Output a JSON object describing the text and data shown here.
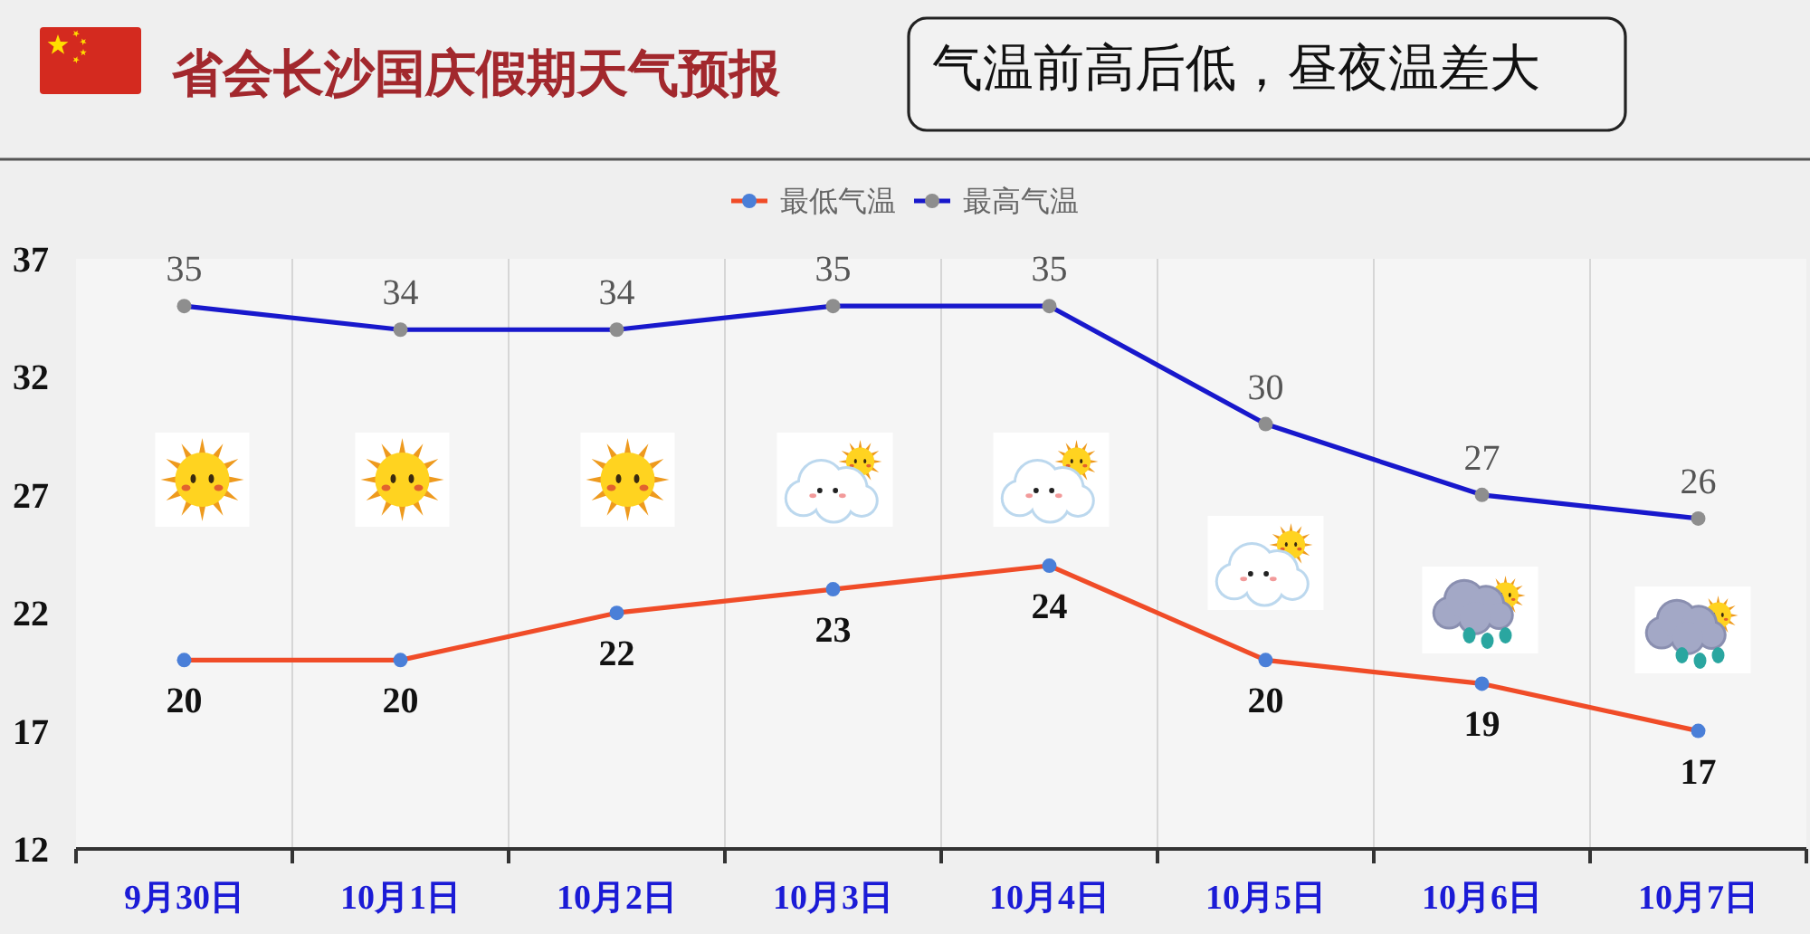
{
  "chart_data": {
    "type": "line",
    "title": "省会长沙国庆假期天气预报",
    "subtitle": "气温前高后低，昼夜温差大",
    "categories": [
      "9月30日",
      "10月1日",
      "10月2日",
      "10月3日",
      "10月4日",
      "10月5日",
      "10月6日",
      "10月7日"
    ],
    "series": [
      {
        "name": "最低气温",
        "color": "#f04c28",
        "colors": [
          "#4a7fd8",
          "#4a7fd8",
          "#4a7fd8",
          "#4a7fd8",
          "#4a7fd8",
          "#4a7fd8",
          "#4a7fd8",
          "#4a7fd8"
        ],
        "values": [
          20,
          20,
          22,
          23,
          24,
          20,
          19,
          17
        ]
      },
      {
        "name": "最高气温",
        "color": "#1818cc",
        "colors": [
          "#8e8e8e",
          "#8e8e8e",
          "#8e8e8e",
          "#8e8e8e",
          "#8e8e8e",
          "#8e8e8e",
          "#8e8e8e",
          "#8e8e8e"
        ],
        "values": [
          35,
          34,
          34,
          35,
          35,
          30,
          27,
          26
        ]
      }
    ],
    "ylim": [
      12,
      37
    ],
    "yticks": [
      12,
      17,
      22,
      27,
      32,
      37
    ],
    "grid": "x",
    "legend": "top",
    "marker": "circle",
    "line_style": "solid",
    "data_labels": true
  }
}
